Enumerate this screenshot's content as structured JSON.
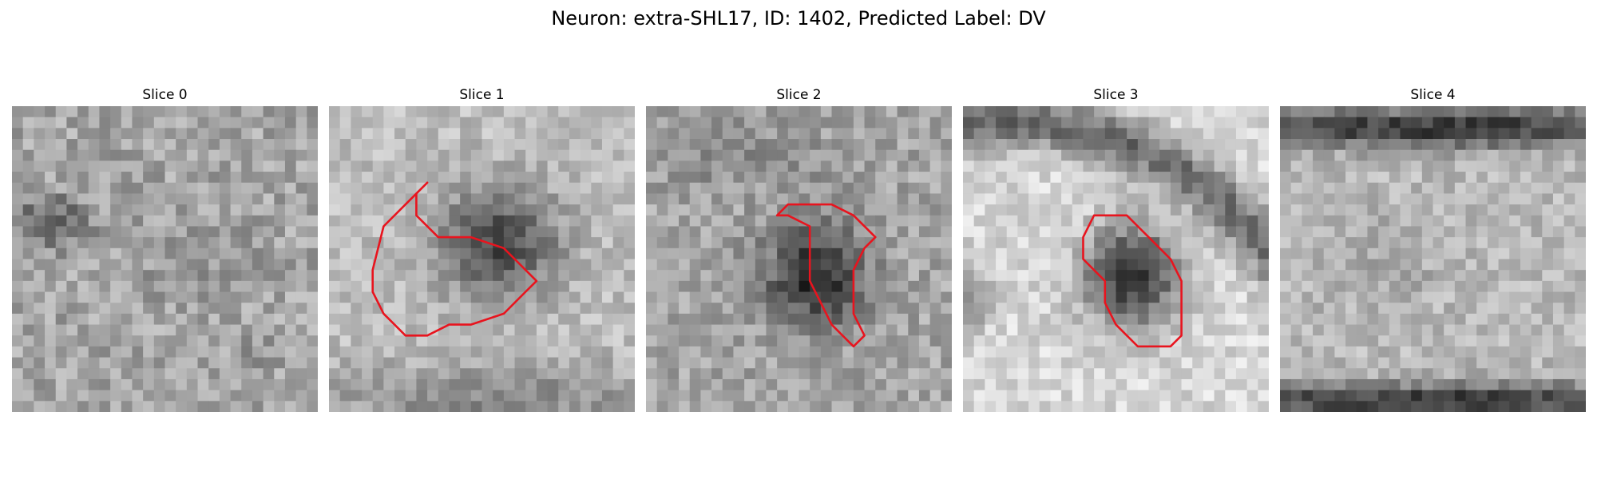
{
  "figure": {
    "title": "Neuron: extra-SHL17, ID: 1402, Predicted Label: DV"
  },
  "panels": [
    {
      "title": "Slice 0",
      "has_contour": false
    },
    {
      "title": "Slice 1",
      "has_contour": true
    },
    {
      "title": "Slice 2",
      "has_contour": true
    },
    {
      "title": "Slice 3",
      "has_contour": true
    },
    {
      "title": "Slice 4",
      "has_contour": false
    }
  ],
  "colors": {
    "contour": "#e8141e",
    "background": "#ffffff"
  }
}
